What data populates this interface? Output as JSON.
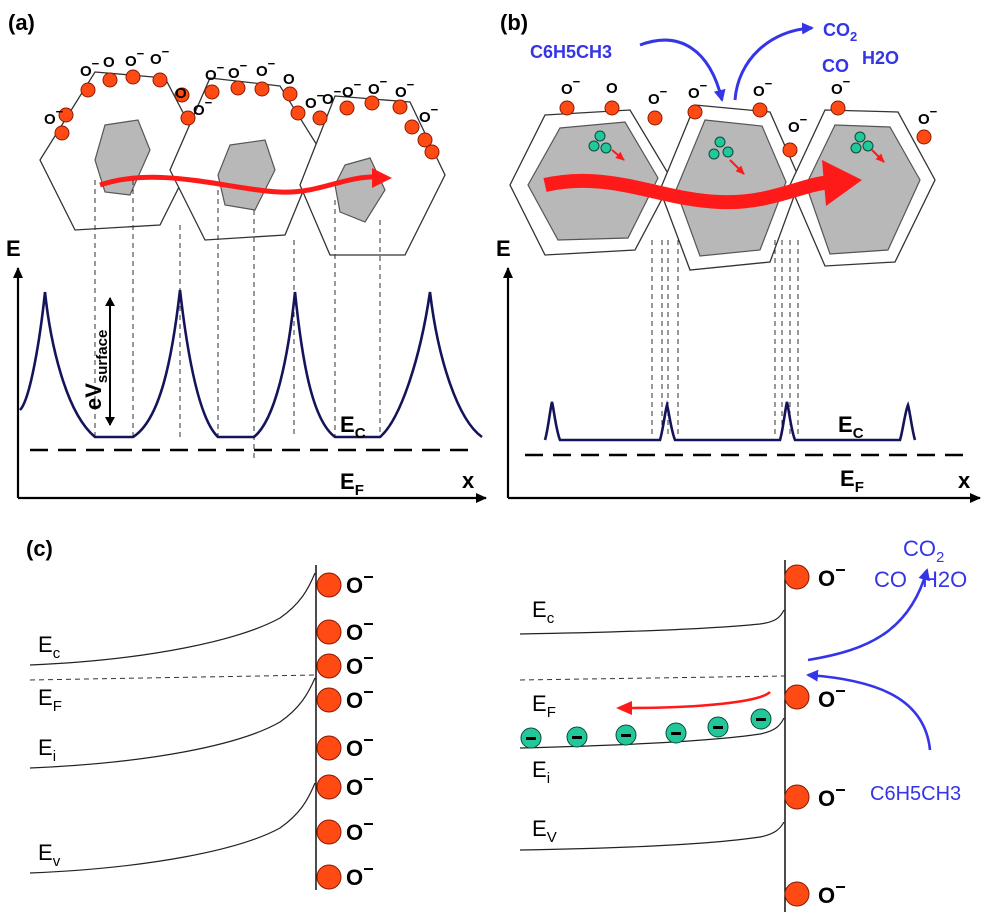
{
  "panels": {
    "a": {
      "label": "(a)",
      "axis_e": "E",
      "axis_x": "x",
      "barrier_main": "eV",
      "barrier_sub": "surface",
      "ec_main": "E",
      "ec_sub": "C",
      "ef_main": "E",
      "ef_sub": "F",
      "oxygen_label": "O",
      "charge": "−"
    },
    "b": {
      "label": "(b)",
      "axis_e": "E",
      "axis_x": "x",
      "ec_main": "E",
      "ec_sub": "C",
      "ef_main": "E",
      "ef_sub": "F",
      "reactant": "C6H5CH3",
      "product_co2_main": "CO",
      "product_co2_sub": "2",
      "product_co": "CO",
      "product_h2o": "H2O",
      "oxygen_label": "O",
      "charge": "−"
    },
    "c": {
      "label": "(c)",
      "left": {
        "ec_main": "E",
        "ec_sub": "c",
        "ef_main": "E",
        "ef_sub": "F",
        "ei_main": "E",
        "ei_sub": "i",
        "ev_main": "E",
        "ev_sub": "v",
        "oxygen_label": "O",
        "charge": "−"
      },
      "right": {
        "ec_main": "E",
        "ec_sub": "c",
        "ef_main": "E",
        "ef_sub": "F",
        "ei_main": "E",
        "ei_sub": "i",
        "ev_main": "E",
        "ev_sub": "V",
        "oxygen_label": "O",
        "charge": "−",
        "product_co2_main": "CO",
        "product_co2_sub": "2",
        "product_co": "CO",
        "product_h2o": "H2O",
        "reactant": "C6H5CH3"
      }
    }
  },
  "colors": {
    "oxygen_ion": "#ff4a14",
    "electron": "#22c79a",
    "reaction_arrow": "#3535e8",
    "electron_flow": "#ff1a1a",
    "band_line": "#14145a"
  }
}
